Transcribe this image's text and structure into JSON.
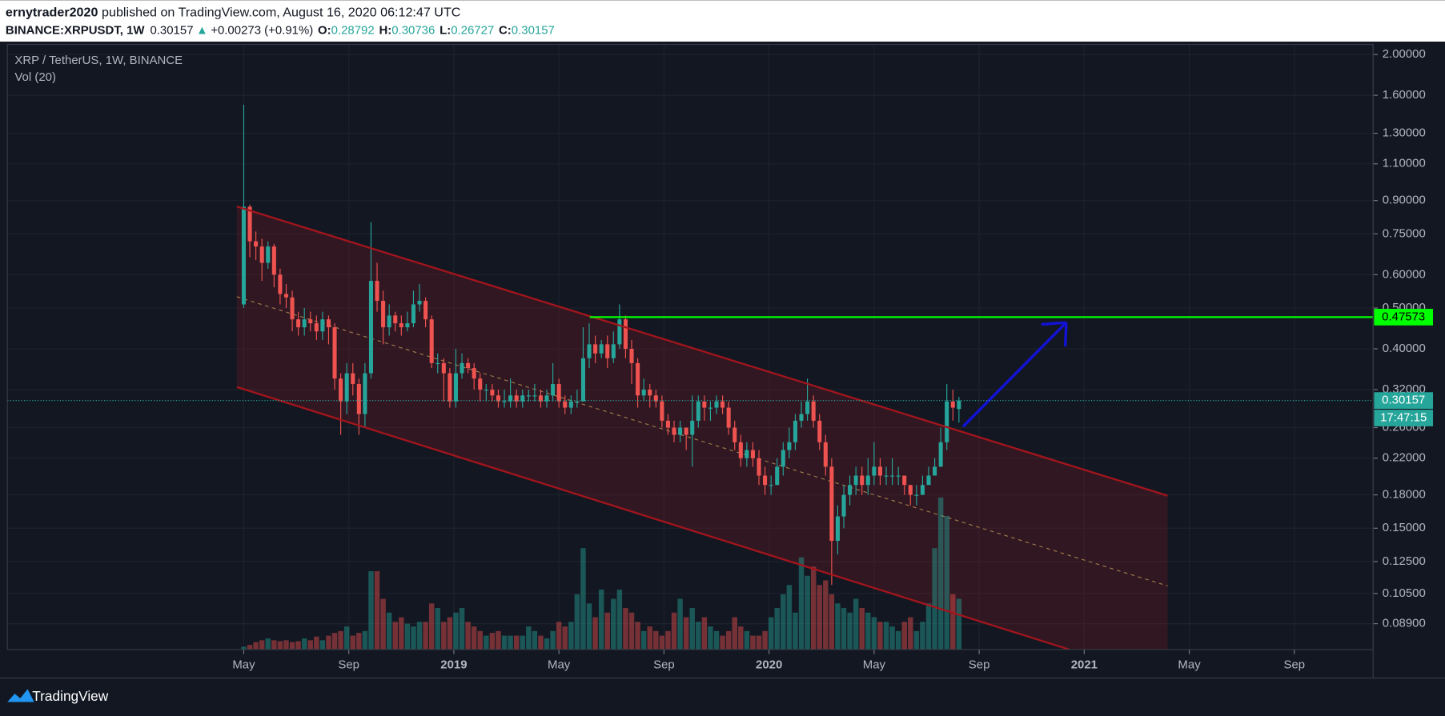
{
  "header": {
    "author": "ernytrader2020",
    "published": "published on TradingView.com, August 16, 2020 06:12:47 UTC",
    "symbol": "BINANCE:XRPUSDT, 1W",
    "change_arrow": "▲",
    "change": "+0.00273 (+0.91%)",
    "ohlc_labels": [
      "O:",
      "H:",
      "L:",
      "C:"
    ]
  },
  "chart_data": {
    "type": "candlestick",
    "title": "XRP / TetherUS, 1W, BINANCE",
    "subtitle": "Vol (20)",
    "up_color": "#26a69a",
    "down_color": "#ef5350",
    "log_scale": true,
    "grid": true,
    "ylim": [
      0.0773,
      2.113
    ],
    "yticks": [
      {
        "value": 0.089,
        "label": "0.08900"
      },
      {
        "value": 0.105,
        "label": "0.10500"
      },
      {
        "value": 0.125,
        "label": "0.12500"
      },
      {
        "value": 0.15,
        "label": "0.15000"
      },
      {
        "value": 0.18,
        "label": "0.18000"
      },
      {
        "value": 0.22,
        "label": "0.22000"
      },
      {
        "value": 0.26,
        "label": "0.26000"
      },
      {
        "value": 0.32,
        "label": "0.32000"
      },
      {
        "value": 0.4,
        "label": "0.40000"
      },
      {
        "value": 0.5,
        "label": "0.50000"
      },
      {
        "value": 0.6,
        "label": "0.60000"
      },
      {
        "value": 0.75,
        "label": "0.75000"
      },
      {
        "value": 0.9,
        "label": "0.90000"
      },
      {
        "value": 1.1,
        "label": "1.10000"
      },
      {
        "value": 1.3,
        "label": "1.30000"
      },
      {
        "value": 1.6,
        "label": "1.60000"
      },
      {
        "value": 2.0,
        "label": "2.00000"
      }
    ],
    "xlim": [
      "2017-08",
      "2021-12"
    ],
    "xticks": [
      {
        "value": "2018-05",
        "label": "May"
      },
      {
        "value": "2018-09",
        "label": "Sep"
      },
      {
        "value": "2019-01",
        "label": "2019"
      },
      {
        "value": "2019-05",
        "label": "May"
      },
      {
        "value": "2019-09",
        "label": "Sep"
      },
      {
        "value": "2020-01",
        "label": "2020"
      },
      {
        "value": "2020-05",
        "label": "May"
      },
      {
        "value": "2020-09",
        "label": "Sep"
      },
      {
        "value": "2021-01",
        "label": "2021"
      },
      {
        "value": "2021-05",
        "label": "May"
      },
      {
        "value": "2021-09",
        "label": "Sep"
      }
    ],
    "open": [
      0.51,
      0.87,
      0.72,
      0.7,
      0.64,
      0.7,
      0.6,
      0.54,
      0.53,
      0.47,
      0.45,
      0.47,
      0.46,
      0.44,
      0.47,
      0.45,
      0.34,
      0.3,
      0.35,
      0.33,
      0.28,
      0.35,
      0.58,
      0.52,
      0.45,
      0.48,
      0.46,
      0.45,
      0.46,
      0.51,
      0.52,
      0.47,
      0.37,
      0.37,
      0.35,
      0.3,
      0.35,
      0.37,
      0.36,
      0.34,
      0.32,
      0.32,
      0.31,
      0.3,
      0.3,
      0.31,
      0.3,
      0.31,
      0.31,
      0.31,
      0.3,
      0.31,
      0.33,
      0.3,
      0.29,
      0.3,
      0.3,
      0.38,
      0.41,
      0.39,
      0.41,
      0.38,
      0.41,
      0.47,
      0.4,
      0.37,
      0.31,
      0.32,
      0.31,
      0.3,
      0.27,
      0.26,
      0.25,
      0.26,
      0.25,
      0.27,
      0.3,
      0.29,
      0.29,
      0.3,
      0.29,
      0.26,
      0.24,
      0.22,
      0.23,
      0.22,
      0.2,
      0.19,
      0.19,
      0.21,
      0.23,
      0.24,
      0.27,
      0.28,
      0.3,
      0.27,
      0.24,
      0.21,
      0.14,
      0.16,
      0.18,
      0.19,
      0.2,
      0.19,
      0.2,
      0.21,
      0.2,
      0.2,
      0.2,
      0.2,
      0.19,
      0.18,
      0.18,
      0.19,
      0.2,
      0.21,
      0.24,
      0.3,
      0.28792
    ],
    "high": [
      1.52,
      0.88,
      0.76,
      0.73,
      0.72,
      0.71,
      0.62,
      0.57,
      0.55,
      0.49,
      0.5,
      0.49,
      0.48,
      0.49,
      0.48,
      0.46,
      0.35,
      0.37,
      0.37,
      0.34,
      0.37,
      0.8,
      0.64,
      0.55,
      0.51,
      0.49,
      0.48,
      0.49,
      0.55,
      0.57,
      0.53,
      0.48,
      0.39,
      0.38,
      0.36,
      0.4,
      0.39,
      0.38,
      0.37,
      0.35,
      0.33,
      0.33,
      0.32,
      0.32,
      0.34,
      0.32,
      0.32,
      0.32,
      0.33,
      0.32,
      0.32,
      0.37,
      0.34,
      0.31,
      0.31,
      0.32,
      0.45,
      0.46,
      0.43,
      0.42,
      0.43,
      0.44,
      0.51,
      0.48,
      0.42,
      0.38,
      0.34,
      0.33,
      0.32,
      0.31,
      0.28,
      0.27,
      0.27,
      0.26,
      0.31,
      0.31,
      0.31,
      0.3,
      0.31,
      0.31,
      0.3,
      0.27,
      0.25,
      0.24,
      0.24,
      0.23,
      0.21,
      0.2,
      0.22,
      0.24,
      0.26,
      0.28,
      0.3,
      0.34,
      0.31,
      0.28,
      0.25,
      0.22,
      0.17,
      0.19,
      0.2,
      0.21,
      0.21,
      0.22,
      0.24,
      0.22,
      0.21,
      0.22,
      0.21,
      0.2,
      0.19,
      0.19,
      0.2,
      0.21,
      0.22,
      0.26,
      0.33,
      0.32,
      0.30736
    ],
    "low": [
      0.5,
      0.66,
      0.65,
      0.58,
      0.62,
      0.56,
      0.51,
      0.5,
      0.44,
      0.43,
      0.43,
      0.44,
      0.42,
      0.42,
      0.41,
      0.32,
      0.25,
      0.28,
      0.31,
      0.25,
      0.26,
      0.34,
      0.49,
      0.41,
      0.43,
      0.44,
      0.43,
      0.44,
      0.45,
      0.49,
      0.45,
      0.36,
      0.35,
      0.3,
      0.29,
      0.29,
      0.34,
      0.35,
      0.32,
      0.3,
      0.3,
      0.3,
      0.29,
      0.29,
      0.29,
      0.29,
      0.29,
      0.3,
      0.3,
      0.29,
      0.29,
      0.3,
      0.29,
      0.28,
      0.28,
      0.29,
      0.3,
      0.36,
      0.37,
      0.38,
      0.36,
      0.37,
      0.4,
      0.38,
      0.33,
      0.29,
      0.3,
      0.29,
      0.29,
      0.26,
      0.25,
      0.24,
      0.24,
      0.23,
      0.21,
      0.26,
      0.27,
      0.27,
      0.28,
      0.28,
      0.25,
      0.23,
      0.21,
      0.21,
      0.21,
      0.19,
      0.18,
      0.18,
      0.19,
      0.2,
      0.22,
      0.23,
      0.26,
      0.27,
      0.26,
      0.23,
      0.2,
      0.11,
      0.13,
      0.15,
      0.17,
      0.18,
      0.18,
      0.18,
      0.19,
      0.19,
      0.19,
      0.19,
      0.19,
      0.18,
      0.17,
      0.17,
      0.18,
      0.19,
      0.2,
      0.21,
      0.23,
      0.27,
      0.26727
    ],
    "close": [
      0.87,
      0.72,
      0.7,
      0.64,
      0.7,
      0.6,
      0.54,
      0.53,
      0.47,
      0.45,
      0.47,
      0.46,
      0.44,
      0.47,
      0.45,
      0.34,
      0.3,
      0.35,
      0.33,
      0.28,
      0.35,
      0.58,
      0.52,
      0.45,
      0.48,
      0.46,
      0.45,
      0.46,
      0.51,
      0.52,
      0.47,
      0.37,
      0.37,
      0.35,
      0.3,
      0.35,
      0.37,
      0.36,
      0.34,
      0.32,
      0.32,
      0.31,
      0.3,
      0.3,
      0.31,
      0.3,
      0.31,
      0.31,
      0.31,
      0.3,
      0.31,
      0.33,
      0.3,
      0.29,
      0.3,
      0.3,
      0.38,
      0.41,
      0.39,
      0.41,
      0.38,
      0.41,
      0.47,
      0.4,
      0.37,
      0.31,
      0.32,
      0.31,
      0.3,
      0.27,
      0.26,
      0.25,
      0.26,
      0.25,
      0.27,
      0.3,
      0.29,
      0.29,
      0.3,
      0.29,
      0.26,
      0.24,
      0.22,
      0.23,
      0.22,
      0.2,
      0.19,
      0.19,
      0.21,
      0.23,
      0.24,
      0.27,
      0.28,
      0.3,
      0.27,
      0.24,
      0.21,
      0.14,
      0.16,
      0.18,
      0.19,
      0.2,
      0.19,
      0.2,
      0.21,
      0.2,
      0.2,
      0.2,
      0.2,
      0.19,
      0.18,
      0.18,
      0.19,
      0.2,
      0.21,
      0.24,
      0.3,
      0.29,
      0.30157
    ],
    "volume": [
      3,
      5,
      8,
      10,
      12,
      10,
      9,
      10,
      8,
      9,
      12,
      10,
      14,
      10,
      15,
      18,
      20,
      25,
      15,
      18,
      20,
      85,
      85,
      55,
      40,
      30,
      35,
      28,
      25,
      30,
      30,
      50,
      45,
      30,
      35,
      40,
      45,
      30,
      25,
      20,
      15,
      18,
      20,
      15,
      15,
      15,
      15,
      25,
      20,
      15,
      12,
      20,
      30,
      25,
      30,
      60,
      110,
      50,
      35,
      65,
      40,
      55,
      65,
      45,
      40,
      30,
      20,
      25,
      20,
      15,
      20,
      40,
      55,
      35,
      45,
      30,
      35,
      25,
      20,
      15,
      20,
      35,
      25,
      20,
      15,
      15,
      20,
      35,
      45,
      60,
      70,
      40,
      100,
      80,
      90,
      70,
      75,
      60,
      50,
      45,
      40,
      55,
      45,
      40,
      35,
      30,
      30,
      25,
      20,
      30,
      35,
      20,
      30,
      50,
      110,
      165,
      145,
      60,
      55
    ],
    "level": {
      "value": 0.47573,
      "color": "#00ff00"
    },
    "countdown": "17:47:15"
  },
  "footer": {
    "brand": "TradingView"
  }
}
